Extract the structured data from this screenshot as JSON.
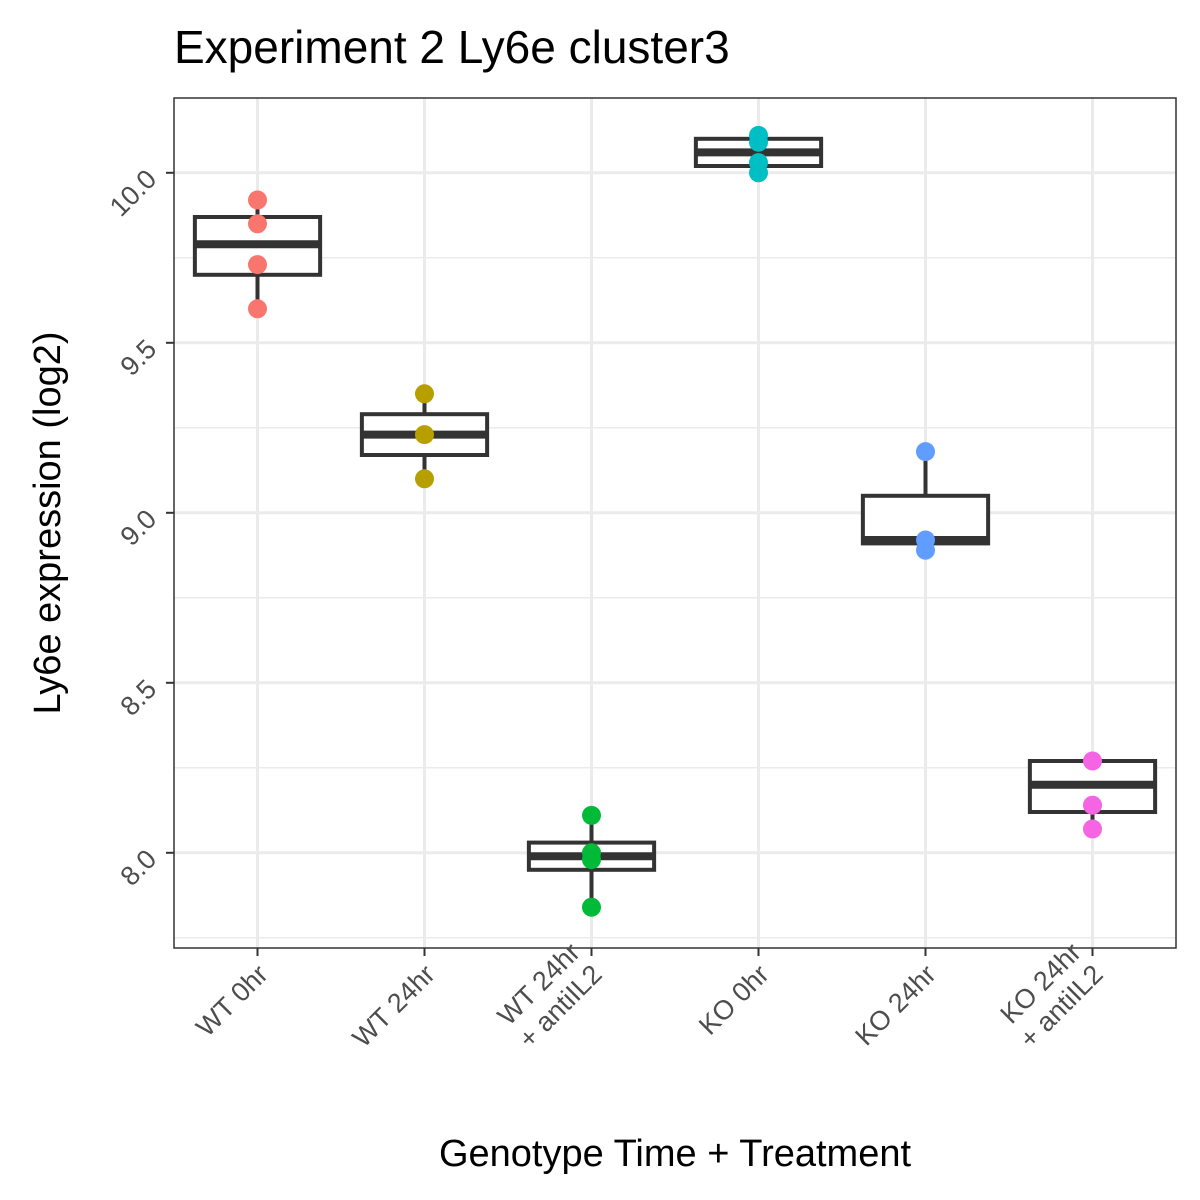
{
  "chart_data": {
    "type": "box",
    "title": "Experiment 2 Ly6e cluster3",
    "xlabel": "Genotype Time + Treatment",
    "ylabel": "Ly6e expression (log2)",
    "ylim": [
      7.72,
      10.22
    ],
    "yticks": [
      8.0,
      8.5,
      9.0,
      9.5,
      10.0
    ],
    "ytick_labels": [
      "8.0",
      "8.5",
      "9.0",
      "9.5",
      "10.0"
    ],
    "grid": true,
    "legend": "none",
    "categories": [
      {
        "label_lines": [
          "WT 0hr"
        ],
        "color": "#F8766D",
        "box": {
          "q1": 9.7,
          "median": 9.79,
          "q3": 9.87,
          "whisker_low": 9.6,
          "whisker_high": 9.92
        },
        "points": [
          9.92,
          9.85,
          9.73,
          9.6
        ]
      },
      {
        "label_lines": [
          "WT 24hr"
        ],
        "color": "#B79F00",
        "box": {
          "q1": 9.17,
          "median": 9.23,
          "q3": 9.29,
          "whisker_low": 9.1,
          "whisker_high": 9.35
        },
        "points": [
          9.35,
          9.23,
          9.1
        ]
      },
      {
        "label_lines": [
          "WT 24hr",
          "+ antiIL2"
        ],
        "color": "#00BA38",
        "box": {
          "q1": 7.95,
          "median": 7.99,
          "q3": 8.03,
          "whisker_low": 7.84,
          "whisker_high": 8.11
        },
        "points": [
          8.11,
          8.0,
          7.98,
          7.84
        ]
      },
      {
        "label_lines": [
          "KO 0hr"
        ],
        "color": "#00BFC4",
        "box": {
          "q1": 10.02,
          "median": 10.06,
          "q3": 10.1,
          "whisker_low": 10.0,
          "whisker_high": 10.11
        },
        "points": [
          10.11,
          10.09,
          10.03,
          10.0
        ]
      },
      {
        "label_lines": [
          "KO 24hr"
        ],
        "color": "#619CFF",
        "box": {
          "q1": 8.91,
          "median": 8.92,
          "q3": 9.05,
          "whisker_low": 8.89,
          "whisker_high": 9.18
        },
        "points": [
          9.18,
          8.92,
          8.89
        ]
      },
      {
        "label_lines": [
          "KO 24hr",
          "+ antiIL2"
        ],
        "color": "#F564E3",
        "box": {
          "q1": 8.12,
          "median": 8.2,
          "q3": 8.27,
          "whisker_low": 8.07,
          "whisker_high": 8.27
        },
        "points": [
          8.27,
          8.14,
          8.07
        ]
      }
    ]
  }
}
